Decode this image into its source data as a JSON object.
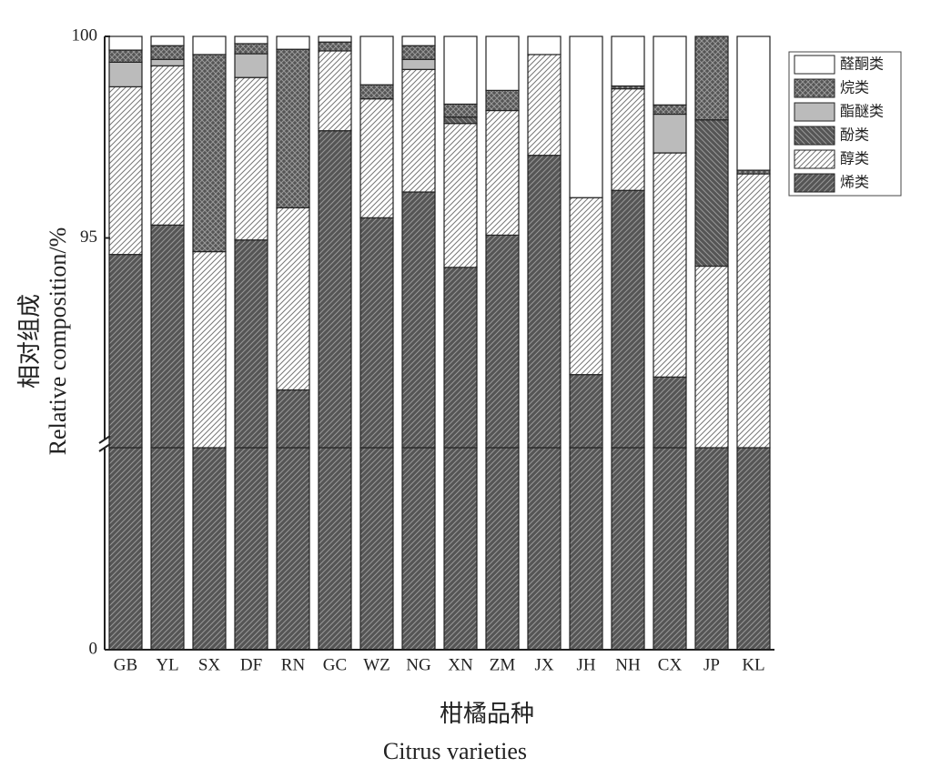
{
  "chart_data": {
    "type": "stacked_bar",
    "ylabel": [
      "相对组成",
      "Relative composition/%"
    ],
    "xlabel": [
      "柑橘品种",
      "Citrus varieties"
    ],
    "categories": [
      "GB",
      "YL",
      "SX",
      "DF",
      "RN",
      "GC",
      "WZ",
      "NG",
      "XN",
      "ZM",
      "JX",
      "JH",
      "NH",
      "CX",
      "JP",
      "KL"
    ],
    "ylim": [
      0,
      100
    ],
    "ybreak": 90,
    "yticks": [
      0,
      95,
      100
    ],
    "series": [
      {
        "name": "烯类",
        "color": "#555555",
        "hatch": "/",
        "values": [
          94.59,
          95.32,
          90.0,
          94.95,
          91.23,
          97.66,
          95.5,
          96.14,
          94.27,
          95.07,
          97.05,
          91.61,
          96.18,
          91.55,
          90.0,
          90.0
        ]
      },
      {
        "name": "醇类",
        "color": "#ffffff",
        "hatch": "/",
        "values": [
          4.16,
          3.95,
          4.66,
          4.03,
          4.52,
          1.98,
          2.95,
          3.04,
          3.57,
          3.09,
          2.5,
          4.39,
          2.52,
          5.56,
          4.3,
          6.59
        ]
      },
      {
        "name": "酚类",
        "color": "#555555",
        "hatch": "\\",
        "values": [
          0,
          0,
          0,
          0,
          0,
          0,
          0,
          0,
          0.16,
          0,
          0,
          0,
          0,
          0,
          3.63,
          0
        ]
      },
      {
        "name": "酯醚类",
        "color": "#bbbbbb",
        "hatch": "",
        "values": [
          0.61,
          0.16,
          0,
          0.59,
          0,
          0,
          0,
          0.25,
          0,
          0,
          0,
          0,
          0,
          0.96,
          0,
          0
        ]
      },
      {
        "name": "烷类",
        "color": "#555555",
        "hatch": "x",
        "values": [
          0.3,
          0.34,
          4.89,
          0.25,
          3.93,
          0.22,
          0.35,
          0.34,
          0.32,
          0.5,
          0,
          0,
          0.07,
          0.23,
          2.07,
          0.09
        ]
      },
      {
        "name": "醛酮类",
        "color": "#ffffff",
        "hatch": "",
        "values": [
          0.34,
          0.23,
          0.45,
          0.18,
          0.32,
          0.14,
          1.2,
          0.23,
          1.68,
          1.34,
          0.45,
          4.0,
          1.23,
          1.7,
          0,
          3.32
        ]
      }
    ],
    "legend": "upper right"
  }
}
